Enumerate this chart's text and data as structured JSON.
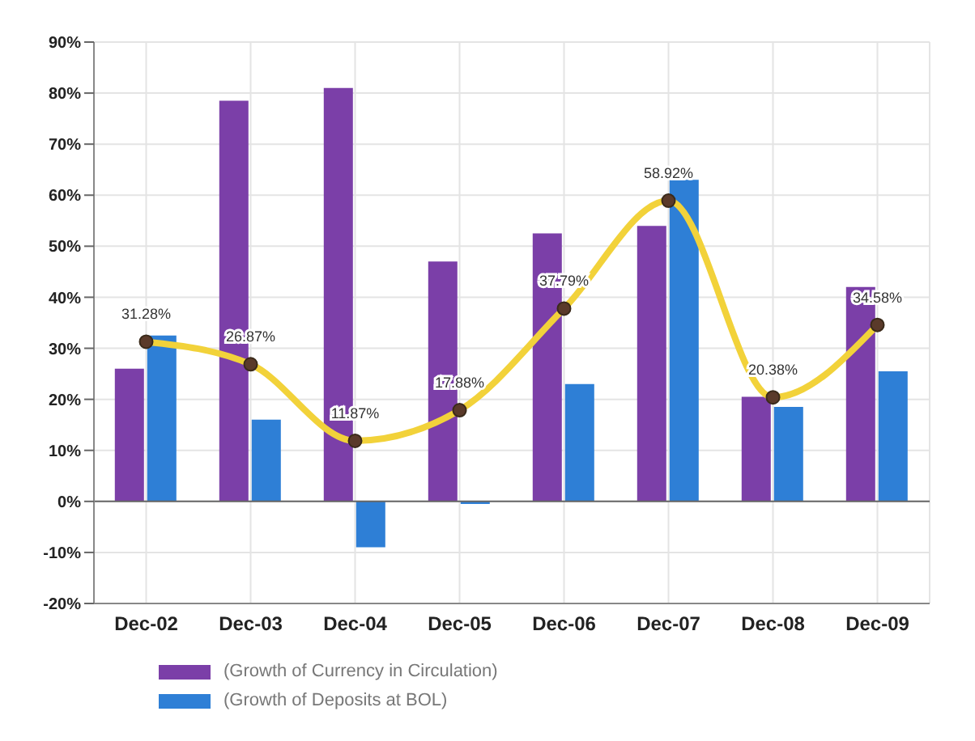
{
  "chart_data": {
    "type": "bar",
    "categories": [
      "Dec-02",
      "Dec-03",
      "Dec-04",
      "Dec-05",
      "Dec-06",
      "Dec-07",
      "Dec-08",
      "Dec-09"
    ],
    "series": [
      {
        "name": "(Growth of Currency in Circulation)",
        "color": "#7b3fa8",
        "values": [
          26,
          78.5,
          81,
          47,
          52.5,
          54,
          20.5,
          42
        ]
      },
      {
        "name": "(Growth of Deposits at BOL)",
        "color": "#2e7fd6",
        "values": [
          32.5,
          16,
          -9,
          -0.5,
          23,
          63,
          18.5,
          25.5
        ]
      },
      {
        "type": "line",
        "color": "#f2d23a",
        "values": [
          31.28,
          26.87,
          11.87,
          17.88,
          37.79,
          58.92,
          20.38,
          34.58
        ],
        "value_labels": [
          "31.28%",
          "26.87%",
          "11.87%",
          "17.88%",
          "37.79%",
          "58.92%",
          "20.38%",
          "34.58%"
        ]
      }
    ],
    "ylim": [
      -20,
      90
    ],
    "yticks": [
      {
        "value": -20,
        "label": "-20%"
      },
      {
        "value": -10,
        "label": "-10%"
      },
      {
        "value": 0,
        "label": "0%"
      },
      {
        "value": 10,
        "label": "10%"
      },
      {
        "value": 20,
        "label": "20%"
      },
      {
        "value": 30,
        "label": "30%"
      },
      {
        "value": 40,
        "label": "40%"
      },
      {
        "value": 50,
        "label": "50%"
      },
      {
        "value": 60,
        "label": "60%"
      },
      {
        "value": 70,
        "label": "70%"
      },
      {
        "value": 80,
        "label": "80%"
      },
      {
        "value": 90,
        "label": "90%"
      }
    ],
    "grid": true,
    "legend": "bottom",
    "marker": "circle"
  }
}
